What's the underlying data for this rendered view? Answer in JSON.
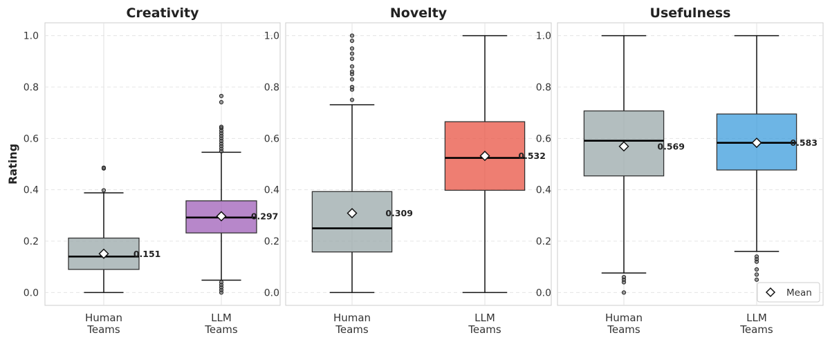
{
  "chart_data": {
    "type": "box",
    "ylabel": "Rating",
    "ylim": [
      -0.05,
      1.05
    ],
    "yticks": [
      0.0,
      0.2,
      0.4,
      0.6,
      0.8,
      1.0
    ],
    "ytick_labels": [
      "0.0",
      "0.2",
      "0.4",
      "0.6",
      "0.8",
      "1.0"
    ],
    "grid": true,
    "legend": {
      "label": "Mean",
      "marker": "diamond",
      "location": "lower-right",
      "panel": 2
    },
    "categories": [
      "Human Teams",
      "LLM Teams"
    ],
    "category_lines": [
      [
        "Human",
        "Teams"
      ],
      [
        "LLM",
        "Teams"
      ]
    ],
    "panels": [
      {
        "title": "Creativity",
        "boxes": [
          {
            "category": "Human Teams",
            "color": "#95a5a6",
            "whisker_low": 0.0,
            "q1": 0.09,
            "median": 0.14,
            "q3": 0.212,
            "whisker_high": 0.388,
            "mean": 0.151,
            "mean_label": "0.151",
            "outliers": [
              0.398,
              0.483,
              0.486
            ]
          },
          {
            "category": "LLM Teams",
            "color": "#9b59b6",
            "whisker_low": 0.048,
            "q1": 0.232,
            "median": 0.292,
            "q3": 0.357,
            "whisker_high": 0.546,
            "mean": 0.297,
            "mean_label": "0.297",
            "outliers": [
              0.0,
              0.01,
              0.02,
              0.03,
              0.04,
              0.55,
              0.56,
              0.57,
              0.58,
              0.59,
              0.6,
              0.61,
              0.62,
              0.63,
              0.64,
              0.645,
              0.741,
              0.765
            ]
          }
        ]
      },
      {
        "title": "Novelty",
        "boxes": [
          {
            "category": "Human Teams",
            "color": "#95a5a6",
            "whisker_low": 0.0,
            "q1": 0.158,
            "median": 0.25,
            "q3": 0.393,
            "whisker_high": 0.731,
            "mean": 0.309,
            "mean_label": "0.309",
            "outliers": [
              0.75,
              0.79,
              0.8,
              0.83,
              0.85,
              0.86,
              0.88,
              0.91,
              0.93,
              0.95,
              0.98,
              1.0
            ]
          },
          {
            "category": "LLM Teams",
            "color": "#e74c3c",
            "whisker_low": 0.0,
            "q1": 0.398,
            "median": 0.524,
            "q3": 0.665,
            "whisker_high": 1.0,
            "mean": 0.532,
            "mean_label": "0.532",
            "outliers": []
          }
        ]
      },
      {
        "title": "Usefulness",
        "boxes": [
          {
            "category": "Human Teams",
            "color": "#95a5a6",
            "whisker_low": 0.076,
            "q1": 0.454,
            "median": 0.591,
            "q3": 0.707,
            "whisker_high": 1.0,
            "mean": 0.569,
            "mean_label": "0.569",
            "outliers": [
              0.0,
              0.04,
              0.05,
              0.06
            ]
          },
          {
            "category": "LLM Teams",
            "color": "#3498db",
            "whisker_low": 0.16,
            "q1": 0.477,
            "median": 0.583,
            "q3": 0.695,
            "whisker_high": 1.0,
            "mean": 0.583,
            "mean_label": "0.583",
            "outliers": [
              0.05,
              0.07,
              0.09,
              0.12,
              0.13,
              0.14
            ]
          }
        ]
      }
    ]
  }
}
